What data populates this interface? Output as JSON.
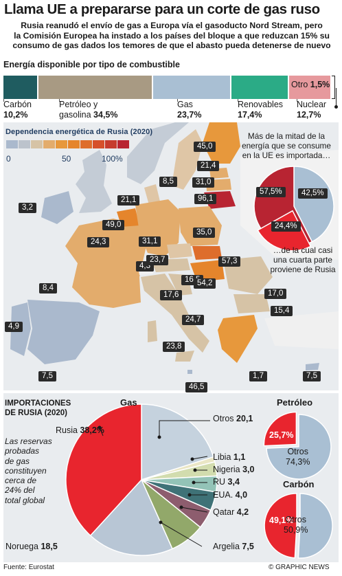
{
  "title": "Llama UE a prepararse para un corte de gas ruso",
  "subtitle_lines": [
    "Rusia reanudó el envío de gas a Europa vía el gasoducto Nord Stream, pero",
    "la Comisión Europea ha instado a los países del bloque a que reduzcan 15% su",
    "consumo de gas dados los temores de que el abasto pueda detenerse de nuevo"
  ],
  "source": "Fuente: Eurostat",
  "credit": "© GRAPHIC NEWS",
  "chart_data": [
    {
      "type": "bar",
      "orientation": "stacked-horizontal",
      "title": "Energía disponible por tipo de combustible",
      "unit": "%",
      "segments": [
        {
          "name_lines": [
            "Carbón"
          ],
          "value": 10.2,
          "value_text": "10,2%",
          "color": "#1f5c60"
        },
        {
          "name_lines": [
            "Petróleo y",
            "gasolina"
          ],
          "value": 34.5,
          "value_text": "34,5%",
          "color": "#a89a83"
        },
        {
          "name_lines": [
            "Gas"
          ],
          "value": 23.7,
          "value_text": "23,7%",
          "color": "#a9bfd3"
        },
        {
          "name_lines": [
            "Renovables"
          ],
          "value": 17.4,
          "value_text": "17,4%",
          "color": "#2bab86"
        },
        {
          "name_lines": [
            "Nuclear"
          ],
          "value": 12.7,
          "value_text": "12,7%",
          "color": "#e6999d"
        },
        {
          "name_lines": [
            "Otro"
          ],
          "value": 1.5,
          "value_text": "1,5%",
          "color": "#ffffff"
        }
      ]
    },
    {
      "type": "heatmap",
      "title": "Dependencia energética de Rusia (2020)",
      "scale": {
        "min": 0,
        "mid": 50,
        "max": 100,
        "labels": [
          "0",
          "50",
          "100%"
        ],
        "colors": [
          "#aab9cd",
          "#bcc3cc",
          "#d6c3a6",
          "#e3ac6c",
          "#e7983c",
          "#e5852c",
          "#de6d2c",
          "#d6502b",
          "#c63b2e",
          "#b82432"
        ]
      },
      "values": [
        {
          "value": 45.0,
          "text": "45,0"
        },
        {
          "value": 21.4,
          "text": "21,4"
        },
        {
          "value": 8.5,
          "text": "8,5"
        },
        {
          "value": 31.0,
          "text": "31,0"
        },
        {
          "value": 21.1,
          "text": "21,1"
        },
        {
          "value": 96.1,
          "text": "96,1"
        },
        {
          "value": 3.2,
          "text": "3,2"
        },
        {
          "value": 49.0,
          "text": "49,0"
        },
        {
          "value": 35.0,
          "text": "35,0"
        },
        {
          "value": 24.3,
          "text": "24,3"
        },
        {
          "value": 31.1,
          "text": "31,1"
        },
        {
          "value": 4.3,
          "text": "4,3"
        },
        {
          "value": 23.7,
          "text": "23,7"
        },
        {
          "value": 57.3,
          "text": "57,3"
        },
        {
          "value": 8.4,
          "text": "8,4"
        },
        {
          "value": 16.5,
          "text": "16,5"
        },
        {
          "value": 54.2,
          "text": "54,2"
        },
        {
          "value": 17.6,
          "text": "17,6"
        },
        {
          "value": 17.0,
          "text": "17,0"
        },
        {
          "value": 15.4,
          "text": "15,4"
        },
        {
          "value": 24.7,
          "text": "24,7"
        },
        {
          "value": 4.9,
          "text": "4,9"
        },
        {
          "value": 23.8,
          "text": "23,8"
        },
        {
          "value": 7.5,
          "text": "7,5"
        },
        {
          "value": 46.5,
          "text": "46,5"
        },
        {
          "value": 1.7,
          "text": "1,7"
        },
        {
          "value": 7.5,
          "text": "7,5"
        }
      ]
    },
    {
      "type": "pie",
      "title": "",
      "callout_top_lines": [
        "Más de la mitad  de la",
        "energía que se consume",
        "en la UE es importada…"
      ],
      "callout_bottom_lines": [
        "…de la cual casi",
        "una cuarta parte",
        "proviene de Rusia"
      ],
      "slices": [
        {
          "name": "",
          "value": 57.5,
          "value_text": "57,5%",
          "color": "#b82432"
        },
        {
          "name": "",
          "value": 42.5,
          "value_text": "42,5%",
          "color": "#a9bfd3"
        },
        {
          "name": "",
          "value": 24.4,
          "value_text": "24,4%",
          "color": "#e8252e"
        }
      ]
    },
    {
      "type": "pie",
      "title": "Gas",
      "section_title_lines": [
        "IMPORTACIONES",
        "DE RUSIA (2020)"
      ],
      "note_lines": [
        "Las reservas",
        "probadas",
        "de gas",
        "constituyen",
        "cerca de",
        "24% del",
        "total global"
      ],
      "slices": [
        {
          "name": "Otros",
          "value": 20.1,
          "value_text": "20,1",
          "color": "#c5d2de"
        },
        {
          "name": "Libia",
          "value": 1.1,
          "value_text": "1,1",
          "color": "#eae6c5"
        },
        {
          "name": "Nigeria",
          "value": 3.0,
          "value_text": "3,0",
          "color": "#d2dcae"
        },
        {
          "name": "RU",
          "value": 3.4,
          "value_text": "3,4",
          "color": "#93c3b7"
        },
        {
          "name": "EUA.",
          "value": 4.0,
          "value_text": "4,0",
          "color": "#3f7277"
        },
        {
          "name": "Qatar",
          "value": 4.2,
          "value_text": "4,2",
          "color": "#8d5d6e"
        },
        {
          "name": "Argelia",
          "value": 7.5,
          "value_text": "7,5",
          "color": "#92a86a"
        },
        {
          "name": "Noruega",
          "value": 18.5,
          "value_text": "18,5",
          "color": "#b8c6d5"
        },
        {
          "name": "Rusia",
          "value": 38.2,
          "value_text": "38,2%",
          "color": "#e8252e"
        }
      ]
    },
    {
      "type": "pie",
      "title": "Petróleo",
      "slices": [
        {
          "name": "Rusia",
          "value": 25.7,
          "value_text": "25,7%",
          "color": "#e8252e"
        },
        {
          "name": "Otros",
          "value": 74.3,
          "value_text": "74,3%",
          "color": "#a9bfd3"
        }
      ]
    },
    {
      "type": "pie",
      "title": "Carbón",
      "slices": [
        {
          "name": "Rusia",
          "value": 49.1,
          "value_text": "49,1%",
          "color": "#e8252e"
        },
        {
          "name": "Otros",
          "value": 50.9,
          "value_text": "50,9%",
          "color": "#a9bfd3"
        }
      ]
    }
  ]
}
